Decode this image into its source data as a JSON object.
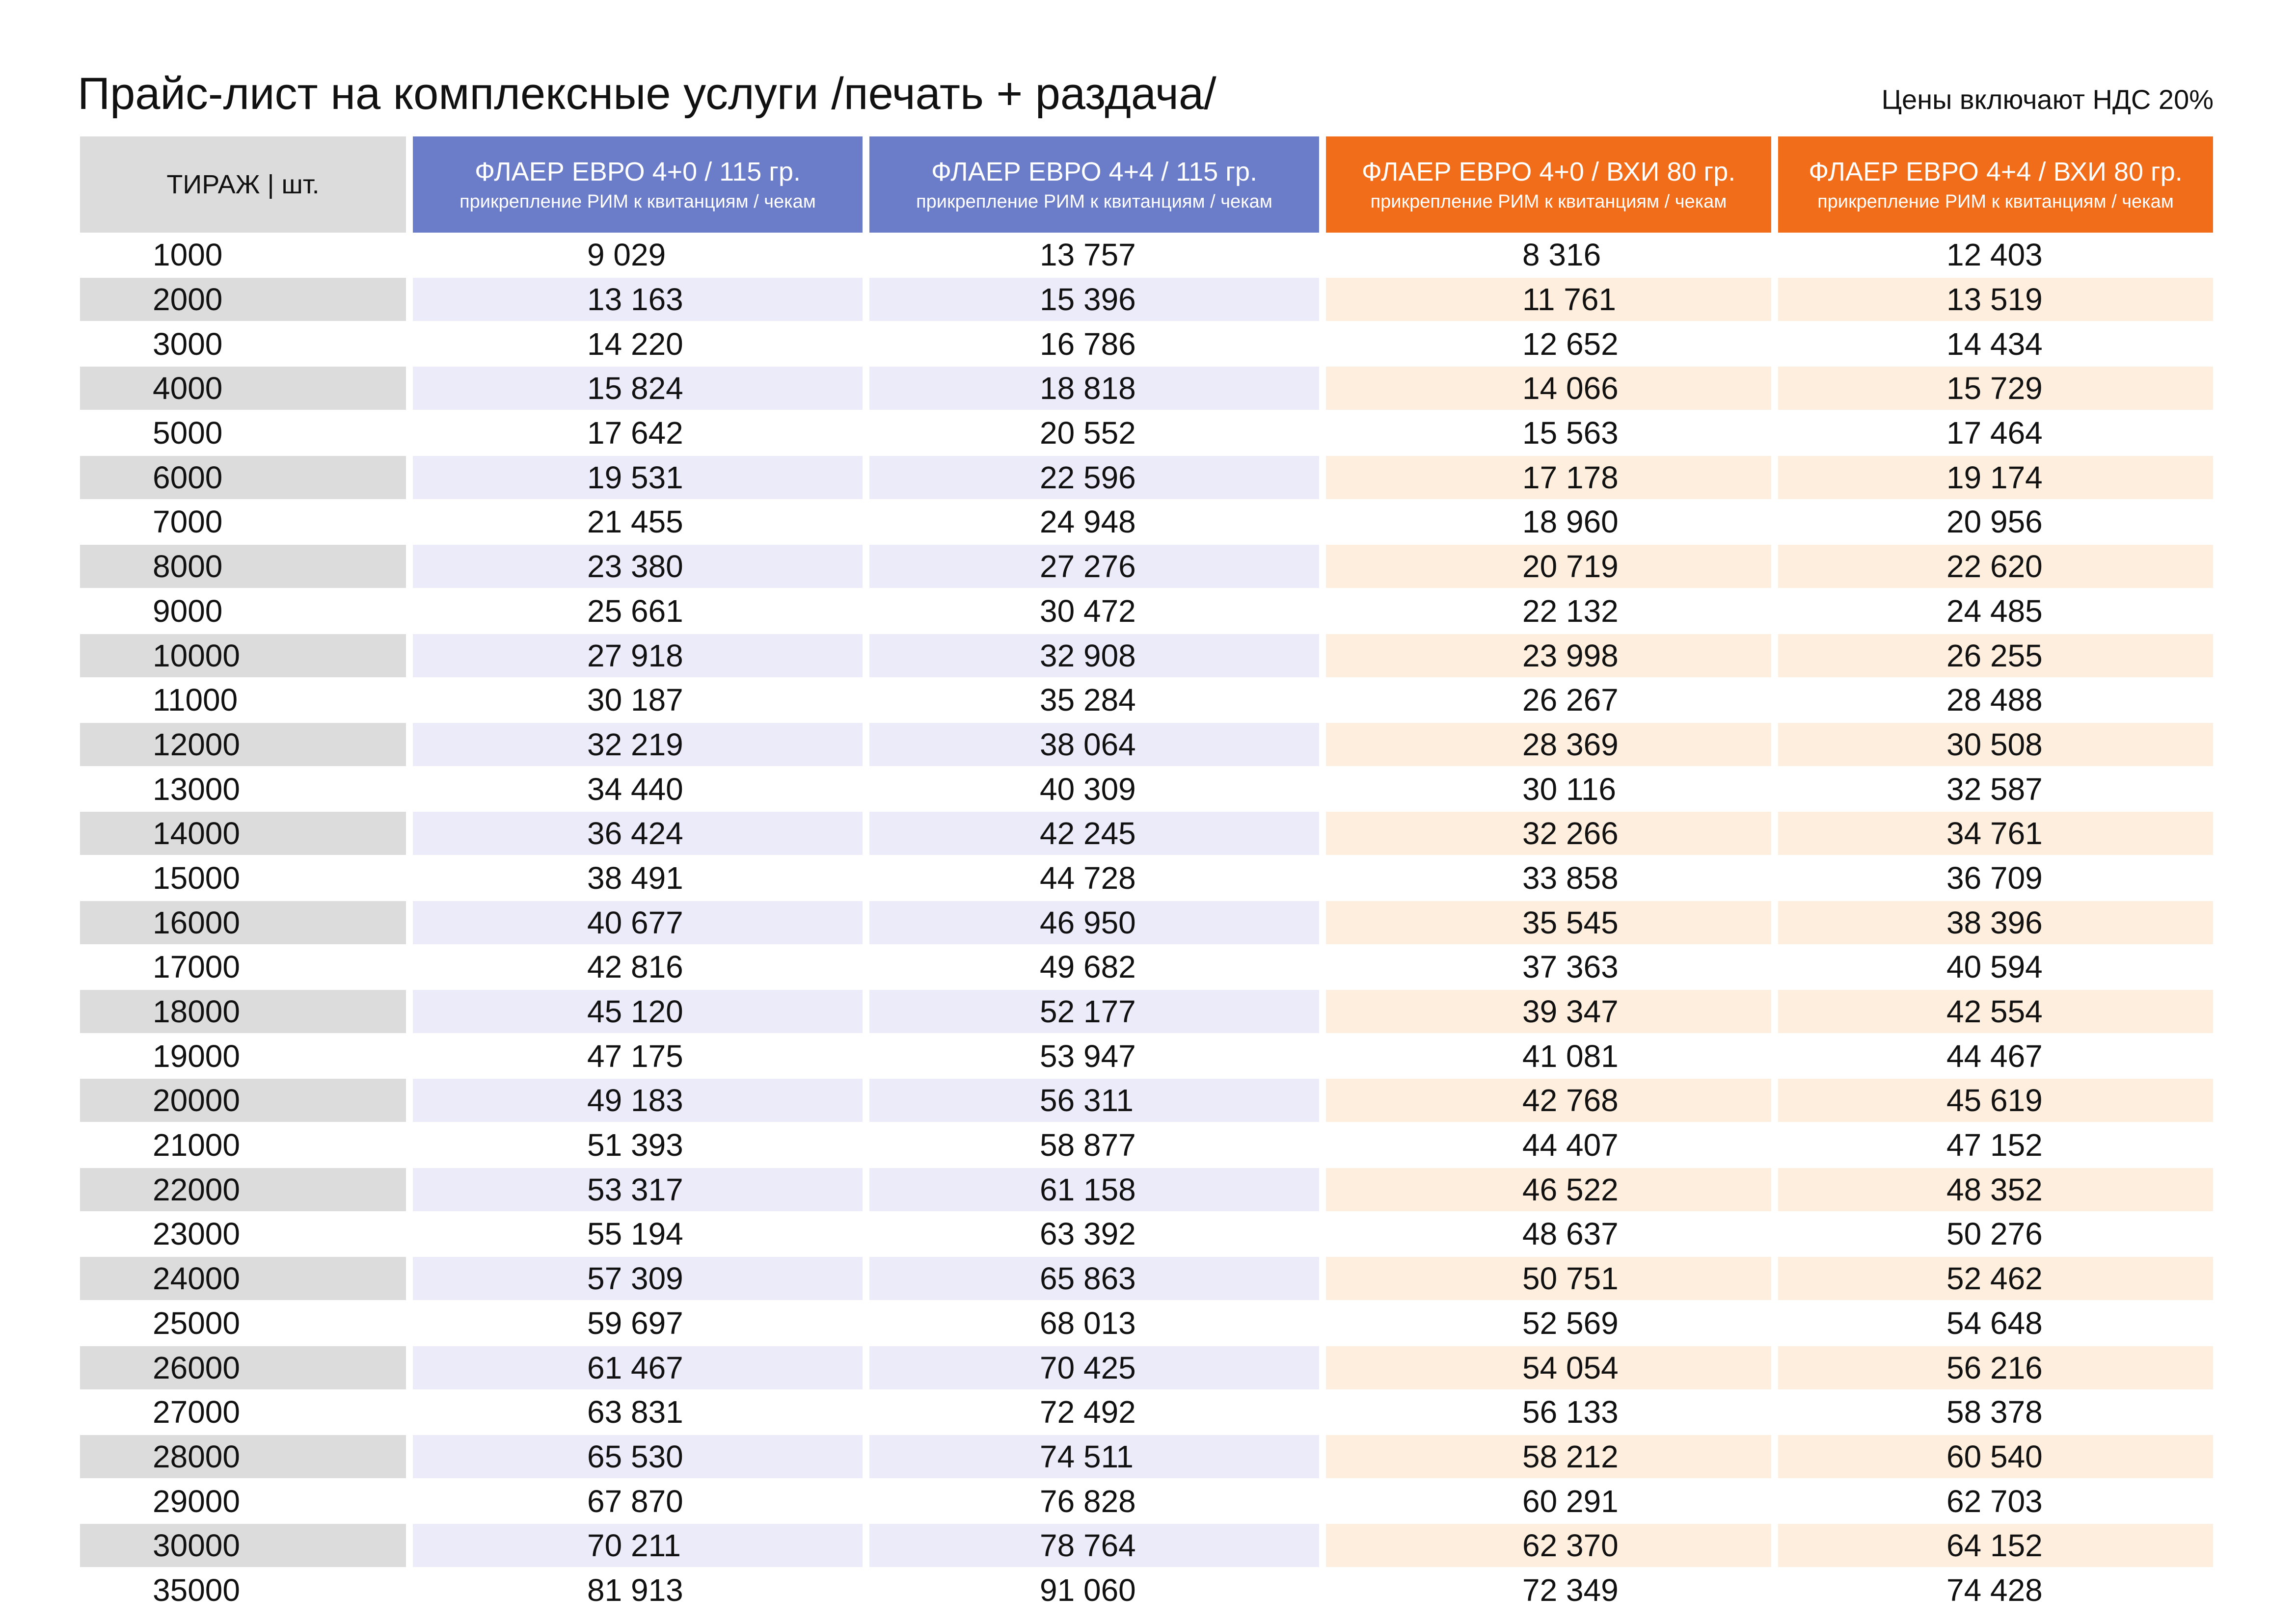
{
  "title": "Прайс-лист на комплексные услуги  /печать + раздача/",
  "vat_note": "Цены включают НДС 20%",
  "colors": {
    "blue_header": "#6b7cc9",
    "orange_header": "#f26d1a",
    "gray_band": "#dcdcdc",
    "blue_band": "#ebebfa",
    "orange_band": "#fdeedd"
  },
  "table": {
    "headers": [
      {
        "title": "ТИРАЖ  |  шт.",
        "subtitle": ""
      },
      {
        "title": "ФЛАЕР ЕВРО  4+0 / 115 гр.",
        "subtitle": "прикрепление РИМ к квитанциям / чекам"
      },
      {
        "title": "ФЛАЕР ЕВРО  4+4 / 115 гр.",
        "subtitle": "прикрепление РИМ к квитанциям / чекам"
      },
      {
        "title": "ФЛАЕР ЕВРО  4+0 / ВХИ 80 гр.",
        "subtitle": "прикрепление РИМ к квитанциям / чекам"
      },
      {
        "title": "ФЛАЕР ЕВРО  4+4 / ВХИ 80 гр.",
        "subtitle": "прикрепление РИМ к квитанциям / чекам"
      }
    ],
    "rows": [
      [
        "1000",
        "9 029",
        "13 757",
        "8 316",
        "12 403"
      ],
      [
        "2000",
        "13 163",
        "15 396",
        "11 761",
        "13 519"
      ],
      [
        "3000",
        "14 220",
        "16 786",
        "12 652",
        "14 434"
      ],
      [
        "4000",
        "15 824",
        "18 818",
        "14 066",
        "15 729"
      ],
      [
        "5000",
        "17 642",
        "20 552",
        "15 563",
        "17 464"
      ],
      [
        "6000",
        "19 531",
        "22 596",
        "17 178",
        "19 174"
      ],
      [
        "7000",
        "21 455",
        "24 948",
        "18 960",
        "20 956"
      ],
      [
        "8000",
        "23 380",
        "27 276",
        "20 719",
        "22 620"
      ],
      [
        "9000",
        "25 661",
        "30 472",
        "22 132",
        "24 485"
      ],
      [
        "10000",
        "27 918",
        "32 908",
        "23 998",
        "26 255"
      ],
      [
        "11000",
        "30 187",
        "35 284",
        "26 267",
        "28 488"
      ],
      [
        "12000",
        "32 219",
        "38 064",
        "28 369",
        "30 508"
      ],
      [
        "13000",
        "34 440",
        "40 309",
        "30 116",
        "32 587"
      ],
      [
        "14000",
        "36 424",
        "42 245",
        "32 266",
        "34 761"
      ],
      [
        "15000",
        "38 491",
        "44 728",
        "33 858",
        "36 709"
      ],
      [
        "16000",
        "40 677",
        "46 950",
        "35 545",
        "38 396"
      ],
      [
        "17000",
        "42 816",
        "49 682",
        "37 363",
        "40 594"
      ],
      [
        "18000",
        "45 120",
        "52 177",
        "39 347",
        "42 554"
      ],
      [
        "19000",
        "47 175",
        "53 947",
        "41 081",
        "44 467"
      ],
      [
        "20000",
        "49 183",
        "56 311",
        "42 768",
        "45 619"
      ],
      [
        "21000",
        "51 393",
        "58 877",
        "44 407",
        "47 152"
      ],
      [
        "22000",
        "53 317",
        "61 158",
        "46 522",
        "48 352"
      ],
      [
        "23000",
        "55 194",
        "63 392",
        "48 637",
        "50 276"
      ],
      [
        "24000",
        "57 309",
        "65 863",
        "50 751",
        "52 462"
      ],
      [
        "25000",
        "59 697",
        "68 013",
        "52 569",
        "54 648"
      ],
      [
        "26000",
        "61 467",
        "70 425",
        "54 054",
        "56 216"
      ],
      [
        "27000",
        "63 831",
        "72 492",
        "56 133",
        "58 378"
      ],
      [
        "28000",
        "65 530",
        "74 511",
        "58 212",
        "60 540"
      ],
      [
        "29000",
        "67 870",
        "76 828",
        "60 291",
        "62 703"
      ],
      [
        "30000",
        "70 211",
        "78 764",
        "62 370",
        "64 152"
      ],
      [
        "35000",
        "81 913",
        "91 060",
        "72 349",
        "74 428"
      ]
    ]
  }
}
